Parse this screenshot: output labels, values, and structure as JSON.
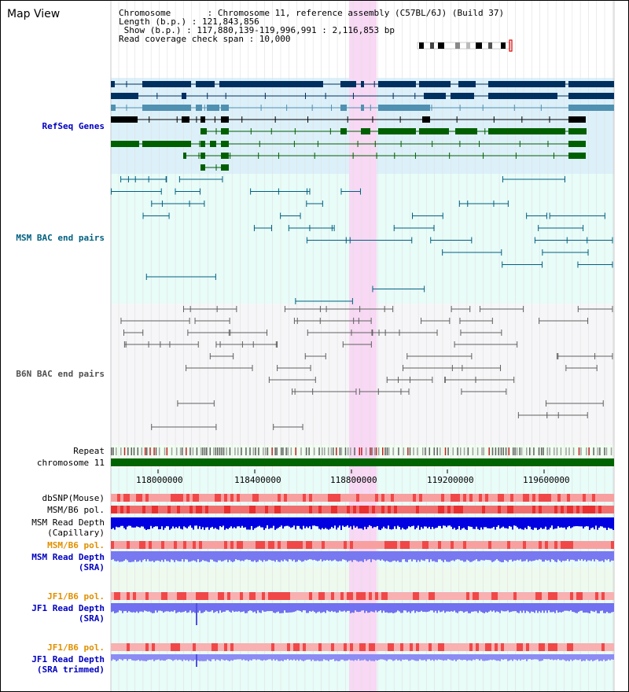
{
  "title": "Map View",
  "info": {
    "chromosome_line": "Chromosome       : Chromosome 11, reference assembly (C57BL/6J) (Build 37)",
    "length_line": "Length (b.p.) : 121,843,856",
    "show_line": " Show (b.p.) : 117,880,139-119,996,991 : 2,116,853 bp",
    "coverage_line": "Read coverage check span : 10,000"
  },
  "track_labels": {
    "refseq": "RefSeq Genes",
    "msm_bac": "MSM BAC end pairs",
    "b6n_bac": "B6N BAC end pairs",
    "repeat": "Repeat",
    "chromosome": "chromosome 11",
    "dbsnp": "dbSNP(Mouse)",
    "msm_pol_1": "MSM/B6 pol.",
    "msm_depth_cap": "MSM Read Depth\n(Capillary)",
    "msm_pol_2": "MSM/B6 pol.",
    "msm_depth_sra": "MSM Read Depth\n(SRA)",
    "jf1_pol_1": "JF1/B6 pol.",
    "jf1_depth_sra": "JF1 Read Depth\n(SRA)",
    "jf1_pol_2": "JF1/B6 pol.",
    "jf1_depth_trim": "JF1 Read Depth\n(SRA trimmed)"
  },
  "axis_ticks": [
    "118000000",
    "118400000",
    "118800000",
    "119200000",
    "119600000"
  ],
  "colors": {
    "refseq_label": "#0000c0",
    "msm_label": "#006080",
    "b6n_label": "#505050",
    "orange_label": "#e09000",
    "blue_label": "#0000c0",
    "highlight": "#f8d8f4",
    "chromosome_bar": "#006400"
  }
}
